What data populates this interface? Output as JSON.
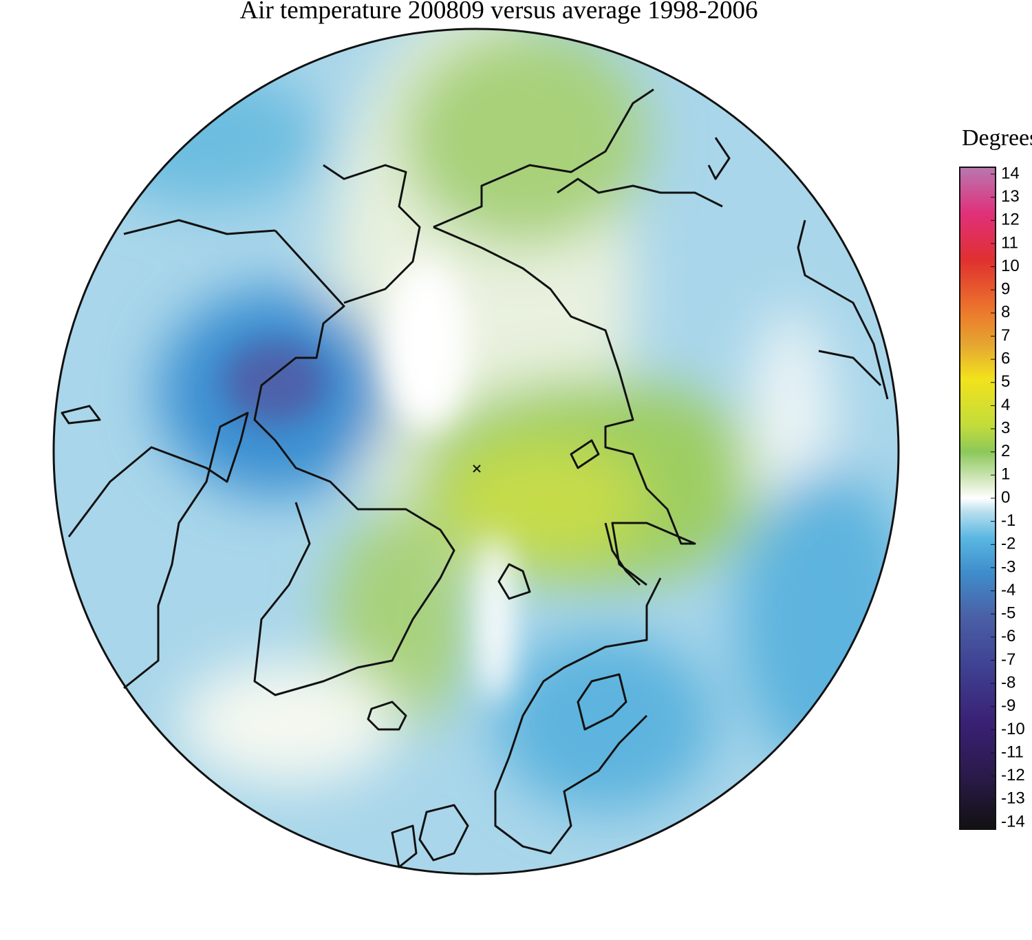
{
  "title": "Air temperature 200809 versus average 1998-2006",
  "legend": {
    "title": "Degrees C",
    "range": [
      -14,
      14
    ],
    "ticks": [
      14,
      13,
      12,
      11,
      10,
      9,
      8,
      7,
      6,
      5,
      4,
      3,
      2,
      1,
      0,
      -1,
      -2,
      -3,
      -4,
      -5,
      -6,
      -7,
      -8,
      -9,
      -10,
      -11,
      -12,
      -13,
      -14
    ]
  }
}
